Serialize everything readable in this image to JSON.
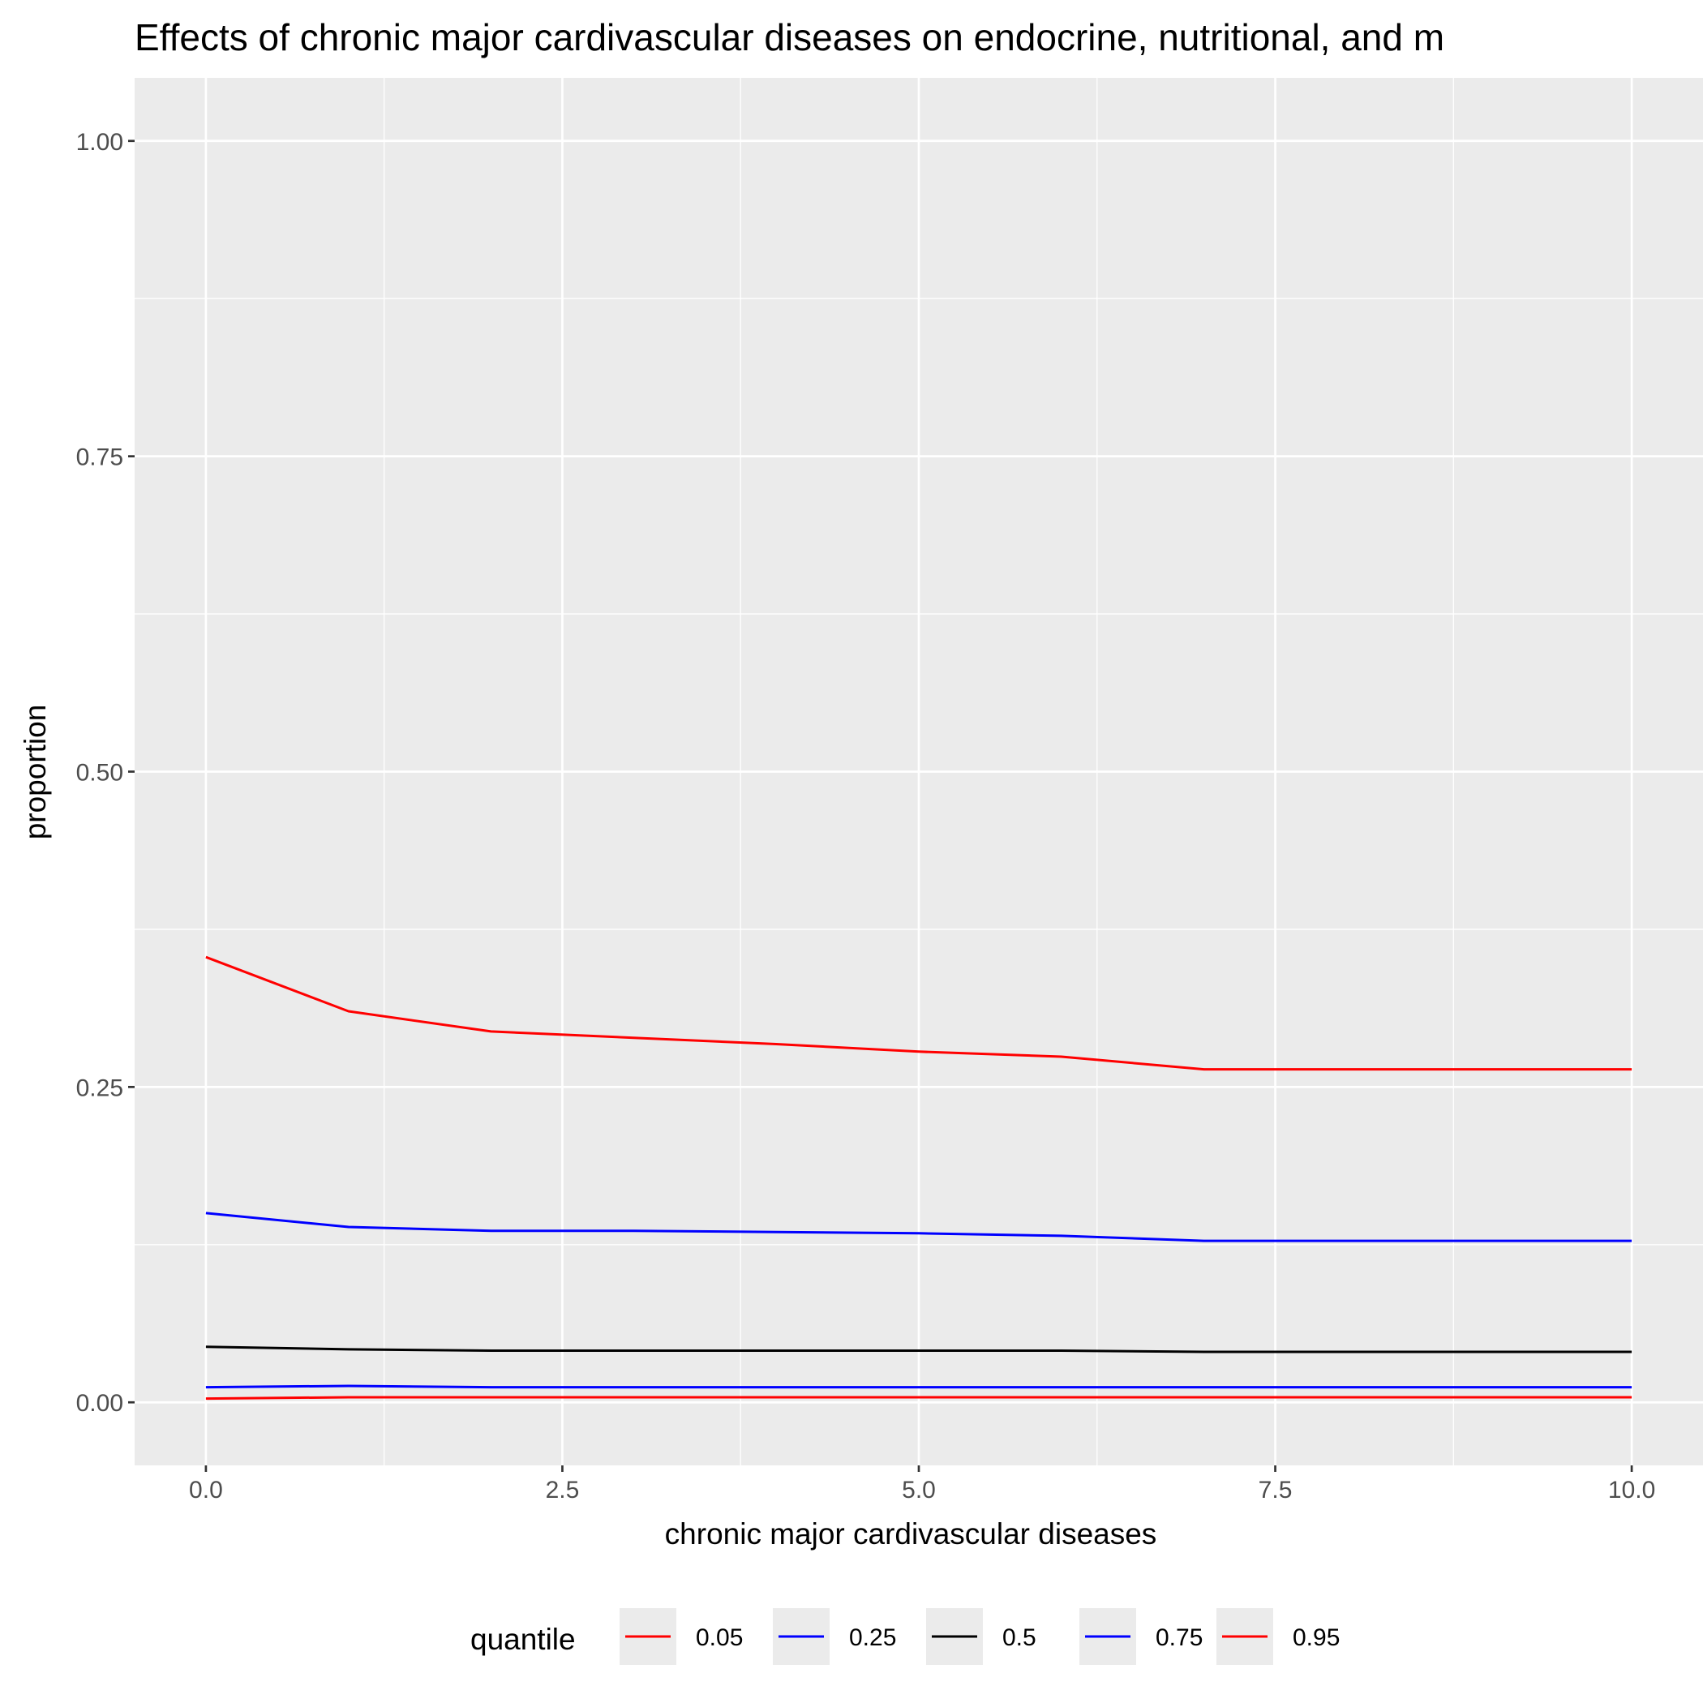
{
  "chart_data": {
    "type": "line",
    "title": "Effects of chronic major cardivascular diseases on endocrine, nutritional, and m",
    "xlabel": "chronic major cardivascular diseases",
    "ylabel": "proportion",
    "xlim": [
      -0.5,
      10.5
    ],
    "ylim": [
      -0.05,
      1.05
    ],
    "x_ticks": [
      0,
      2.5,
      5,
      7.5,
      10
    ],
    "x_tick_labels": [
      "0.0",
      "2.5",
      "5.0",
      "7.5",
      "10.0"
    ],
    "y_ticks": [
      0,
      0.25,
      0.5,
      0.75,
      1
    ],
    "y_tick_labels": [
      "0.00",
      "0.25",
      "0.50",
      "0.75",
      "1.00"
    ],
    "grid": true,
    "legend_title": "quantile",
    "legend_position": "bottom",
    "x": [
      0,
      1,
      2,
      3,
      4,
      5,
      6,
      7,
      8,
      9,
      10
    ],
    "series": [
      {
        "name": "0.05",
        "color": "#ff0000",
        "values": [
          0.003,
          0.004,
          0.004,
          0.004,
          0.004,
          0.004,
          0.004,
          0.004,
          0.004,
          0.004,
          0.004
        ]
      },
      {
        "name": "0.25",
        "color": "#0000ff",
        "values": [
          0.012,
          0.013,
          0.012,
          0.012,
          0.012,
          0.012,
          0.012,
          0.012,
          0.012,
          0.012,
          0.012
        ]
      },
      {
        "name": "0.5",
        "color": "#000000",
        "values": [
          0.044,
          0.042,
          0.041,
          0.041,
          0.041,
          0.041,
          0.041,
          0.04,
          0.04,
          0.04,
          0.04
        ]
      },
      {
        "name": "0.75",
        "color": "#0000ff",
        "values": [
          0.15,
          0.139,
          0.136,
          0.136,
          0.135,
          0.134,
          0.132,
          0.128,
          0.128,
          0.128,
          0.128
        ]
      },
      {
        "name": "0.95",
        "color": "#ff0000",
        "values": [
          0.353,
          0.31,
          0.294,
          0.289,
          0.284,
          0.278,
          0.274,
          0.264,
          0.264,
          0.264,
          0.264
        ]
      }
    ]
  }
}
